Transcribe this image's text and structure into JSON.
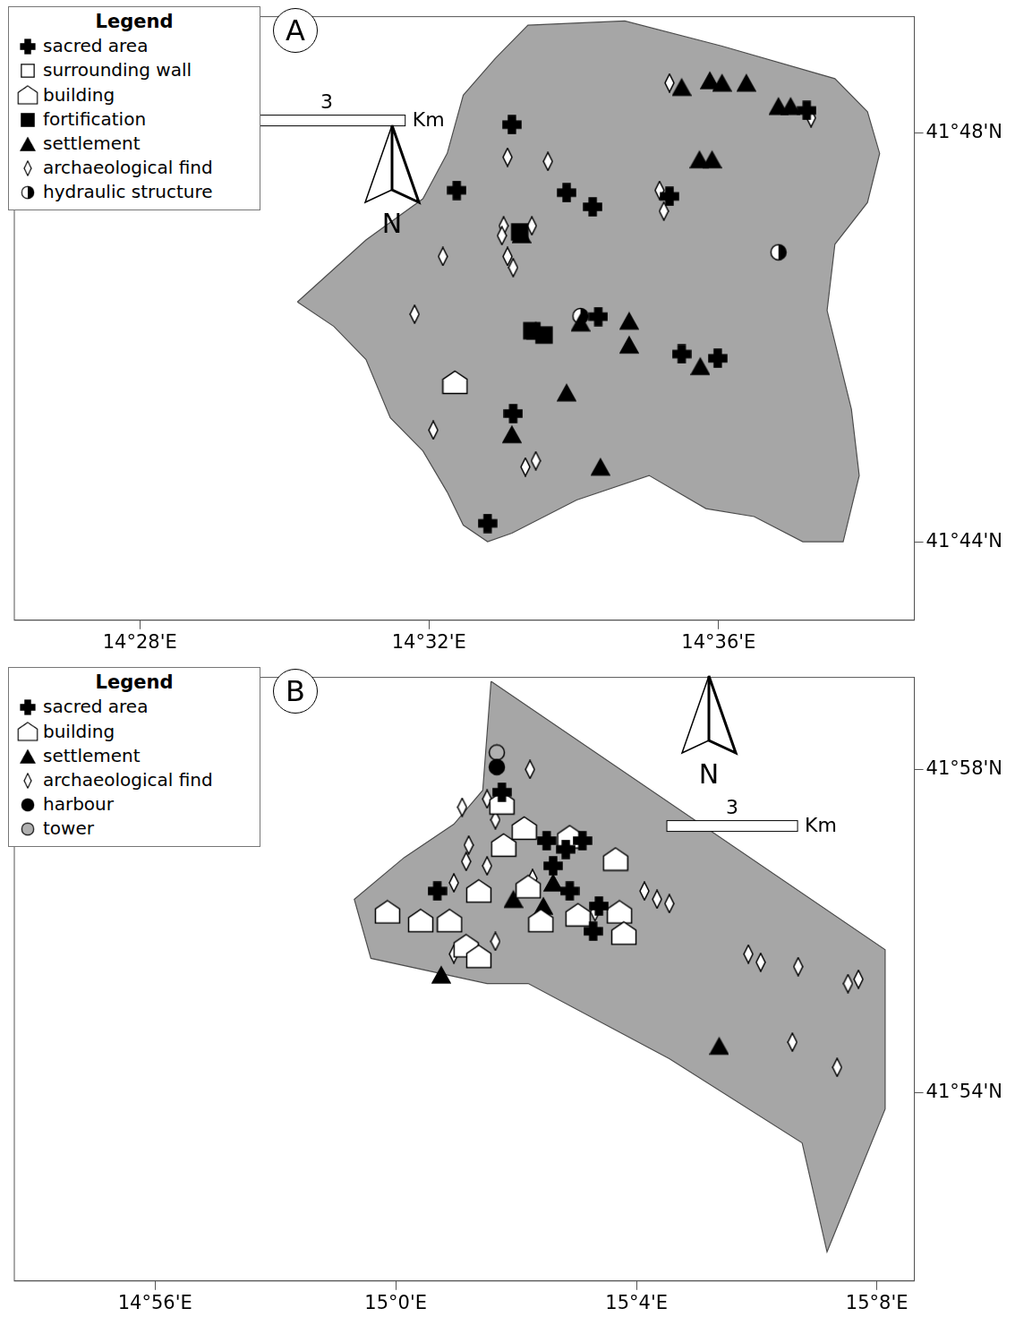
{
  "chart_data": [
    {
      "type": "scatter",
      "title": "A",
      "legend_title": "Legend",
      "legend": "upper left",
      "grid": false,
      "north_arrow": "N",
      "scale_bar": {
        "value": 3,
        "unit": "Km"
      },
      "xlim": [
        14.4378,
        14.6451
      ],
      "ylim": [
        41.7205,
        41.8189
      ],
      "xticks": [
        {
          "value": 14.4667,
          "label": "14°28'E"
        },
        {
          "value": 14.5333,
          "label": "14°32'E"
        },
        {
          "value": 14.6,
          "label": "14°36'E"
        }
      ],
      "yticks": [
        {
          "value": 41.7333,
          "label": "41°44'N"
        },
        {
          "value": 41.8,
          "label": "41°48'N"
        }
      ],
      "study_area": {
        "x": [
          14.503,
          14.5188,
          14.5319,
          14.5375,
          14.5412,
          14.5486,
          14.5561,
          14.5784,
          14.6008,
          14.6268,
          14.6343,
          14.6371,
          14.6343,
          14.6268,
          14.625,
          14.6306,
          14.6324,
          14.6287,
          14.6194,
          14.6082,
          14.5971,
          14.584,
          14.5673,
          14.5524,
          14.5468,
          14.5412,
          14.5375,
          14.5319,
          14.5244,
          14.5188,
          14.5114,
          14.503
        ],
        "y": [
          41.7724,
          41.7825,
          41.7892,
          41.7966,
          41.8061,
          41.8121,
          41.8175,
          41.8182,
          41.8141,
          41.8088,
          41.8034,
          41.7966,
          41.7886,
          41.7818,
          41.771,
          41.7549,
          41.7441,
          41.7333,
          41.7333,
          41.7374,
          41.7387,
          41.7441,
          41.7401,
          41.7347,
          41.7333,
          41.736,
          41.7414,
          41.7481,
          41.7535,
          41.763,
          41.7684,
          41.7724
        ]
      },
      "series": [
        {
          "name": "sacred area",
          "color": "#000000",
          "marker": "plus",
          "x": [
            14.5524,
            14.5397,
            14.5468,
            14.565,
            14.571,
            14.5887,
            14.6203,
            14.5723,
            14.5915,
            14.5998,
            14.5527
          ],
          "y": [
            41.8013,
            41.7906,
            41.7363,
            41.7902,
            41.7879,
            41.7896,
            41.8036,
            41.77,
            41.7639,
            41.7632,
            41.7542
          ]
        },
        {
          "name": "surrounding wall",
          "color": "#ffffff",
          "marker": "square_open",
          "x": [],
          "y": []
        },
        {
          "name": "building",
          "color": "#ffffff",
          "marker": "house",
          "x": [
            14.5393
          ],
          "y": [
            41.7593
          ]
        },
        {
          "name": "fortification",
          "color": "#000000",
          "marker": "square",
          "x": [
            14.557,
            14.5598,
            14.5542
          ],
          "y": [
            41.7677,
            41.767,
            41.7838
          ]
        },
        {
          "name": "settlement",
          "color": "#000000",
          "marker": "triangle",
          "x": [
            14.5915,
            14.598,
            14.6008,
            14.6064,
            14.6138,
            14.6166,
            14.5956,
            14.5985,
            14.5682,
            14.5794,
            14.5794,
            14.5958,
            14.565,
            14.5524,
            14.5728,
            14.5579,
            14.5546
          ],
          "y": [
            41.8074,
            41.8085,
            41.8081,
            41.8081,
            41.8043,
            41.8043,
            41.7956,
            41.7956,
            41.769,
            41.7693,
            41.7654,
            41.7619,
            41.7576,
            41.7508,
            41.7455,
            41.7677,
            41.7834
          ]
        },
        {
          "name": "archaeological find",
          "color": "#ffffff",
          "marker": "diamond",
          "x": [
            14.5887,
            14.6213,
            14.5514,
            14.5607,
            14.5864,
            14.5874,
            14.5505,
            14.557,
            14.5365,
            14.5514,
            14.5527,
            14.53,
            14.5343,
            14.5555,
            14.5579,
            14.5501
          ],
          "y": [
            41.8081,
            41.8024,
            41.796,
            41.7953,
            41.7906,
            41.7872,
            41.7848,
            41.7848,
            41.7798,
            41.7798,
            41.778,
            41.7704,
            41.7515,
            41.7455,
            41.7465,
            41.7832
          ]
        },
        {
          "name": "hydraulic structure",
          "color": "#000000",
          "marker": "half_circle",
          "x": [
            14.6138,
            14.5682
          ],
          "y": [
            41.7805,
            41.7701
          ]
        }
      ]
    },
    {
      "type": "scatter",
      "title": "B",
      "legend_title": "Legend",
      "legend": "upper left",
      "grid": false,
      "north_arrow": "N",
      "scale_bar": {
        "value": 3,
        "unit": "Km"
      },
      "xlim": [
        14.8943,
        15.1437
      ],
      "ylim": [
        41.8611,
        41.9857
      ],
      "xticks": [
        {
          "value": 14.9333,
          "label": "14°56'E"
        },
        {
          "value": 15.0,
          "label": "15°0'E"
        },
        {
          "value": 15.0667,
          "label": "15°4'E"
        },
        {
          "value": 15.1333,
          "label": "15°8'E"
        }
      ],
      "yticks": [
        {
          "value": 41.9,
          "label": "41°54'N"
        },
        {
          "value": 41.9667,
          "label": "41°58'N"
        }
      ],
      "study_area": {
        "x": [
          15.0264,
          15.1356,
          15.1356,
          15.1195,
          15.1126,
          15.0758,
          15.0367,
          15.0253,
          14.9931,
          14.9885,
          15.0023,
          15.0161,
          15.0241,
          15.0264
        ],
        "y": [
          41.9849,
          41.9295,
          41.8966,
          41.8671,
          41.8896,
          41.907,
          41.9225,
          41.9225,
          41.9277,
          41.9399,
          41.9485,
          41.9554,
          41.9624,
          41.9849
        ]
      },
      "series": [
        {
          "name": "sacred area",
          "color": "#000000",
          "marker": "plus",
          "x": [
            15.0294,
            15.0418,
            15.0471,
            15.0517,
            15.0436,
            15.0482,
            15.0563,
            15.0115,
            15.0547
          ],
          "y": [
            41.962,
            41.952,
            41.9502,
            41.952,
            41.9468,
            41.9416,
            41.9385,
            41.9416,
            41.9333
          ]
        },
        {
          "name": "building",
          "color": "#ffffff",
          "marker": "house",
          "x": [
            15.0294,
            15.0299,
            15.0356,
            15.0482,
            15.0609,
            15.023,
            15.0367,
            15.0402,
            15.0505,
            15.062,
            15.0632,
            14.9977,
            15.0069,
            15.0149,
            15.0195,
            15.023
          ],
          "y": [
            41.9598,
            41.9511,
            41.9546,
            41.9528,
            41.9482,
            41.9416,
            41.9425,
            41.9355,
            41.9367,
            41.9373,
            41.9329,
            41.9373,
            41.9355,
            41.9355,
            41.9303,
            41.9281
          ]
        },
        {
          "name": "settlement",
          "color": "#000000",
          "marker": "triangle",
          "x": [
            15.0126,
            15.0326,
            15.0409,
            15.0436,
            15.0896
          ],
          "y": [
            41.9243,
            41.9399,
            41.9385,
            41.9433,
            41.9096
          ]
        },
        {
          "name": "archaeological find",
          "color": "#ffffff",
          "marker": "diamond",
          "x": [
            15.0372,
            15.0184,
            15.0253,
            15.0276,
            15.0202,
            15.0195,
            15.0161,
            15.0276,
            15.0161,
            15.0689,
            15.0724,
            15.0758,
            15.0977,
            15.1011,
            15.1115,
            15.1253,
            15.1282,
            15.1099,
            15.1223,
            15.0552,
            15.0379,
            15.0253
          ],
          "y": [
            41.9667,
            41.9589,
            41.9606,
            41.9563,
            41.9511,
            41.9477,
            41.9433,
            41.9312,
            41.9286,
            41.9416,
            41.9399,
            41.939,
            41.9286,
            41.9269,
            41.926,
            41.9225,
            41.9234,
            41.9104,
            41.9052,
            41.9373,
            41.9442,
            41.9468
          ]
        },
        {
          "name": "harbour",
          "color": "#000000",
          "marker": "circle",
          "x": [
            15.028
          ],
          "y": [
            41.9672
          ]
        },
        {
          "name": "tower",
          "color": "#b0b0b0",
          "marker": "circle",
          "x": [
            15.028
          ],
          "y": [
            41.9702
          ]
        }
      ]
    }
  ]
}
